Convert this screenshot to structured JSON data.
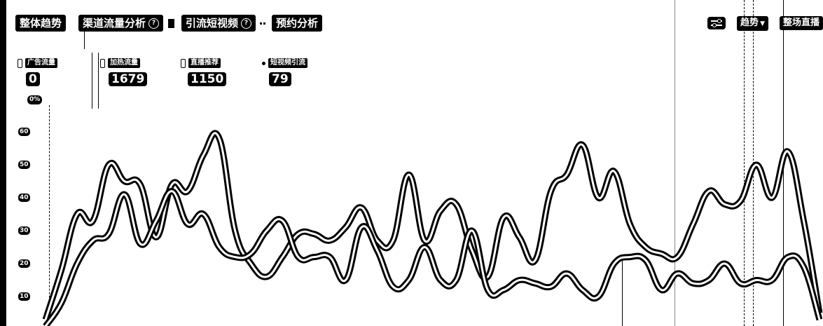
{
  "tabs": [
    {
      "label": "整体趋势",
      "help": false
    },
    {
      "label": "渠道流量分析",
      "help": true
    },
    {
      "label": "引流短视频",
      "help": true
    },
    {
      "label": "预约分析",
      "help": false
    }
  ],
  "controls": {
    "trend_label": "趋势",
    "live_label": "整场直播"
  },
  "metrics": [
    {
      "label": "广告流量",
      "value": "0",
      "change": "0%"
    },
    {
      "label": "加热流量",
      "value": "1679"
    },
    {
      "label": "直播推荐",
      "value": "1150"
    },
    {
      "label": "短视频引流",
      "value": "79"
    }
  ],
  "chart_data": {
    "type": "line",
    "y_ticks": [
      "60",
      "50",
      "40",
      "30",
      "20",
      "10"
    ],
    "ylim": [
      0,
      62
    ],
    "x_count": 49,
    "grid": false,
    "series": [
      {
        "values": [
          3,
          18,
          35,
          33,
          50,
          45,
          44,
          28,
          44,
          42,
          53,
          58,
          30,
          20,
          16,
          22,
          29,
          29,
          27,
          31,
          37,
          27,
          27,
          47,
          27,
          36,
          38,
          24,
          16,
          34,
          28,
          21,
          42,
          47,
          56,
          40,
          48,
          32,
          25,
          23,
          22,
          32,
          42,
          38,
          39,
          50,
          40,
          54,
          33,
          5
        ]
      },
      {
        "values": [
          1,
          8,
          20,
          27,
          29,
          41,
          26,
          33,
          42,
          32,
          35,
          25,
          22,
          23,
          30,
          33,
          22,
          22,
          22,
          15,
          31,
          24,
          13,
          15,
          25,
          15,
          15,
          30,
          12,
          12,
          15,
          14,
          13,
          17,
          12,
          10,
          20,
          22,
          21,
          12,
          17,
          14,
          15,
          20,
          14,
          15,
          15,
          22,
          19,
          3
        ]
      }
    ]
  }
}
